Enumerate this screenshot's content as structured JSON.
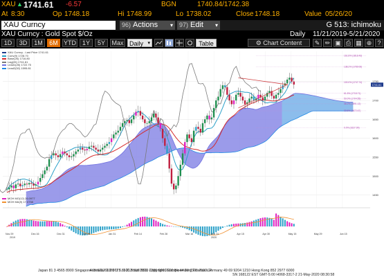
{
  "quote": {
    "ticker": "XAU",
    "last": "1741.61",
    "change": "-6.57",
    "source": "BGN",
    "bid_ask": "1740.84/1742.38",
    "trend_icon": "up-arrow-icon",
    "at_label": "At",
    "at_value": "8:30",
    "open_label": "Op",
    "open_value": "1748.18",
    "high_label": "Hi",
    "high_value": "1748.99",
    "low_label": "Lo",
    "low_value": "1738.02",
    "close_label": "Close",
    "close_value": "1748.18",
    "value_label": "Value",
    "value_date": "05/26/20"
  },
  "security_bar": {
    "input_value": "XAU Curncy",
    "actions_num": "96)",
    "actions_label": "Actions",
    "edit_num": "97)",
    "edit_label": "Edit",
    "page_label": "G 513: ichimoku"
  },
  "title_row": {
    "name": "XAU Curncy : Gold Spot  $/Oz",
    "periodicity": "Daily",
    "range": "11/21/2019-5/21/2020"
  },
  "toolbar": {
    "ranges": [
      "1D",
      "3D",
      "1M",
      "6M",
      "YTD",
      "1Y",
      "5Y",
      "Max"
    ],
    "active_range": "6M",
    "interval": "Daily",
    "table_label": "Table",
    "chart_content_label": "Chart Content"
  },
  "chart": {
    "legend": [
      {
        "label": "XAU Curncy - Last Price  1741.61",
        "color": "#1f3b8c"
      },
      {
        "label": "Conv(9)  1728.70",
        "color": "#2aa0c8"
      },
      {
        "label": "Base(26)  1716.80",
        "color": "#d42a2a"
      },
      {
        "label": "Lag(26)  1741.61",
        "color": "#7a7a7a"
      },
      {
        "label": "Lead1(26)  1722.75",
        "color": "#7070e0"
      },
      {
        "label": "Lead2(52)  1595.81",
        "color": "#1e88e5"
      }
    ],
    "osc_legend": [
      {
        "label": "MOH MO(12) 26.0977",
        "color": "#e020c0"
      },
      {
        "label": "MOH MA(9) 17.0758",
        "color": "#f09030"
      }
    ],
    "price_axis": [
      "1750",
      "1700",
      "1650",
      "1600",
      "1550",
      "1500",
      "1450"
    ],
    "date_axis": [
      "Nov 29",
      "Dec 16",
      "Dec 31",
      "Jan 15",
      "Jan 31",
      "Feb 14",
      "Feb 28",
      "Mar 16",
      "Mar 31",
      "Apr 15",
      "Apr 30",
      "May 15",
      "May 29",
      "Jun 15"
    ],
    "year_labels": [
      "2019",
      "2020"
    ],
    "fib_labels": [
      "161.8% (1818.43)",
      "138.2% (1789.06)",
      "100.0% (1747.74)",
      "61.8% (1718.71)",
      "50.0% (1704.55)",
      "38.2% (1691.12)",
      "23.6% (1672.67)",
      "0.0% (1627.99)"
    ],
    "price_tag": "1741.61"
  },
  "footer": {
    "line1": "Australia 61 2 9777 8600  Brazil 5511 2395 9000  Europe 44 20 7330 7500  Germany 49 69 9204 1210  Hong Kong 852 2977 6000",
    "line2": "Japan 81 3 4565 8900       Singapore 65 6212 1000       U.S. 1 212 318 2000        Copyright 2020 Bloomberg Finance L.P.",
    "line3": "SN 168122 EST  GMT-5:00 H068-3317-2 21-May-2020 08:30:58"
  }
}
